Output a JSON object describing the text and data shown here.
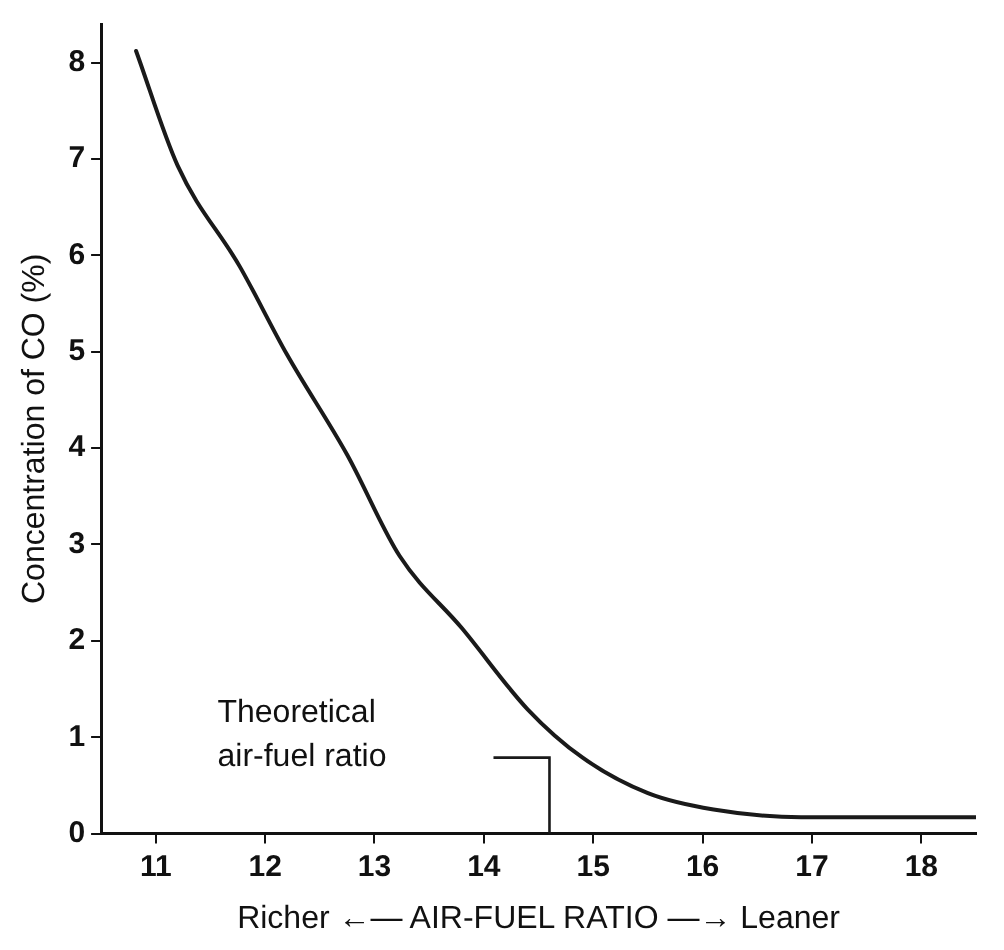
{
  "chart_data": {
    "type": "line",
    "xlabel": "Richer ←— AIR-FUEL RATIO —→ Leaner",
    "ylabel": "Concentration of CO (%)",
    "series": [
      {
        "color": "#1a1a1a",
        "x": [
          10.82,
          11.2,
          11.77,
          12.2,
          12.75,
          13.23,
          13.8,
          14.4,
          14.9,
          15.5,
          16.1,
          16.9,
          17.6,
          18.5
        ],
        "values": [
          8.12,
          6.93,
          5.88,
          4.97,
          3.93,
          2.88,
          2.13,
          1.29,
          0.79,
          0.42,
          0.25,
          0.17,
          0.17,
          0.17
        ]
      }
    ],
    "xlim": [
      10.5,
      18.5
    ],
    "xticks": [
      11,
      12,
      13,
      14,
      15,
      16,
      17,
      18
    ],
    "ylim": [
      0,
      8.4
    ],
    "yticks": [
      0,
      1,
      2,
      3,
      4,
      5,
      6,
      7,
      8
    ],
    "ref_lines": [
      {
        "axis": "x",
        "value": 14.6,
        "label": "Theoretical air-fuel ratio",
        "color": "#1a1a1a"
      }
    ],
    "grid": false,
    "legend": false,
    "marker": "none",
    "line_style": "solid"
  }
}
